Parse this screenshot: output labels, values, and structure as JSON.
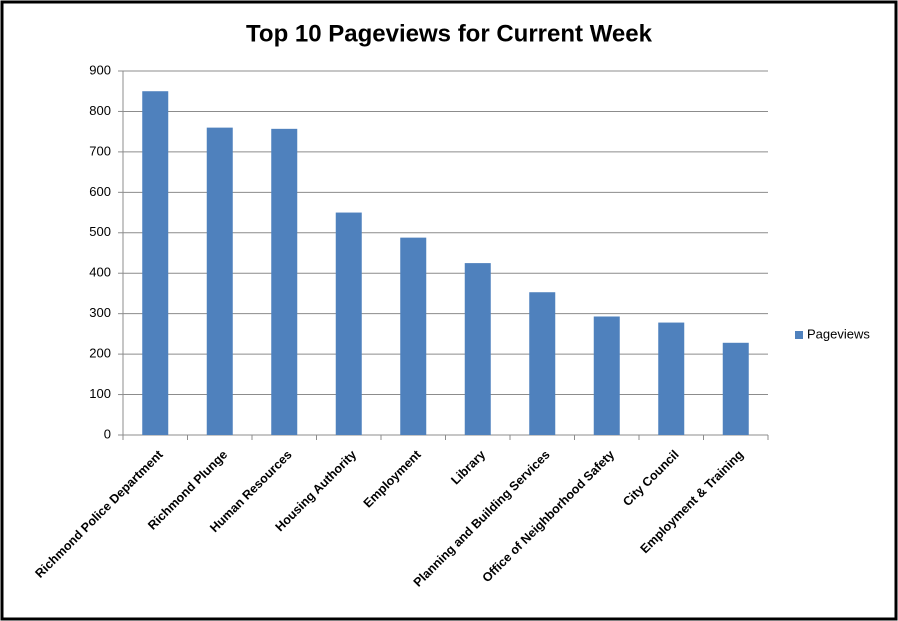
{
  "chart_data": {
    "type": "bar",
    "title": "Top 10 Pageviews for Current Week",
    "categories": [
      "Richmond Police Department",
      "Richmond Plunge",
      "Human Resources",
      "Housing Authority",
      "Employment",
      "Library",
      "Planning and Building Services",
      "Office of Neighborhood Safety",
      "City Council",
      "Employment & Training"
    ],
    "series": [
      {
        "name": "Pageviews",
        "color": "#4f81bd",
        "values": [
          850,
          760,
          757,
          550,
          488,
          425,
          353,
          293,
          278,
          228
        ]
      }
    ],
    "ylim": [
      0,
      900
    ],
    "yticks": [
      0,
      100,
      200,
      300,
      400,
      500,
      600,
      700,
      800,
      900
    ],
    "grid": true,
    "legend": "right"
  }
}
